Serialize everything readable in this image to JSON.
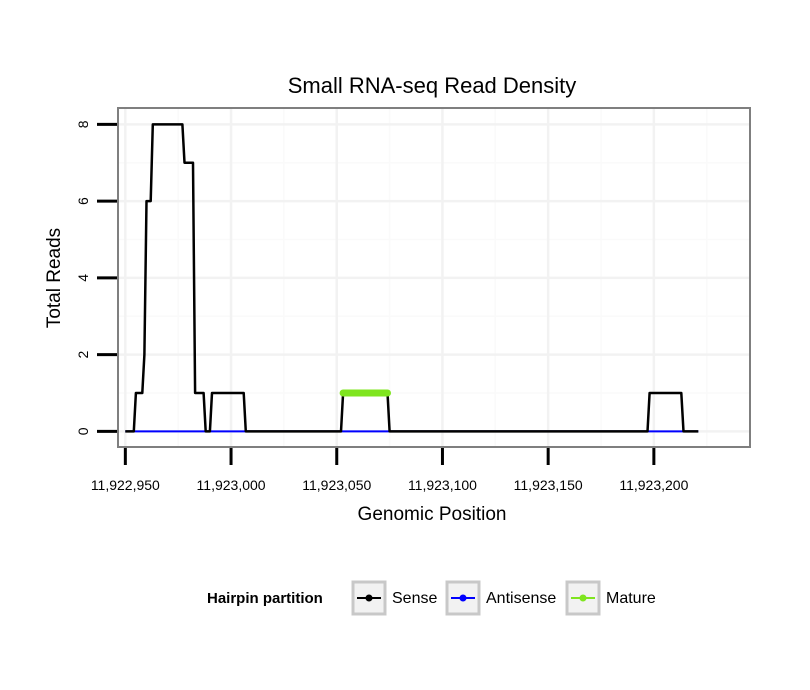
{
  "chart_data": {
    "type": "line",
    "title": "Small RNA-seq Read Density",
    "xlabel": "Genomic Position",
    "ylabel": "Total Reads",
    "xlim": [
      11922947,
      11923245
    ],
    "ylim": [
      -0.38,
      8.4
    ],
    "x_ticks": [
      11922950,
      11923000,
      11923050,
      11923100,
      11923150,
      11923200
    ],
    "x_tick_labels": [
      "11,922,950",
      "11,923,000",
      "11,923,050",
      "11,923,100",
      "11,923,150",
      "11,923,200"
    ],
    "y_ticks": [
      0,
      2,
      4,
      6,
      8
    ],
    "y_tick_labels": [
      "0",
      "2",
      "4",
      "6",
      "8"
    ],
    "grid": true,
    "legend_position": "bottom",
    "legend_title": "Hairpin partition",
    "series": [
      {
        "name": "Sense",
        "color": "#000000",
        "points": [
          [
            11922950,
            0
          ],
          [
            11922954,
            0
          ],
          [
            11922955,
            1
          ],
          [
            11922958,
            1
          ],
          [
            11922959,
            2
          ],
          [
            11922960,
            6
          ],
          [
            11922962,
            6
          ],
          [
            11922963,
            8
          ],
          [
            11922977,
            8
          ],
          [
            11922978,
            7
          ],
          [
            11922982,
            7
          ],
          [
            11922983,
            1
          ],
          [
            11922987,
            1
          ],
          [
            11922988,
            0
          ],
          [
            11922990,
            0
          ],
          [
            11922991,
            1
          ],
          [
            11923006,
            1
          ],
          [
            11923007,
            0
          ],
          [
            11923052,
            0
          ],
          [
            11923053,
            1
          ],
          [
            11923074,
            1
          ],
          [
            11923075,
            0
          ],
          [
            11923197,
            0
          ],
          [
            11923198,
            1
          ],
          [
            11923213,
            1
          ],
          [
            11923214,
            0
          ],
          [
            11923221,
            0
          ]
        ]
      },
      {
        "name": "Antisense",
        "color": "#0000ff",
        "points": [
          [
            11922950,
            0
          ],
          [
            11923221,
            0
          ]
        ]
      },
      {
        "name": "Mature",
        "color": "#7fe51f",
        "points": [
          [
            11923053,
            1
          ],
          [
            11923074,
            1
          ]
        ]
      }
    ]
  }
}
